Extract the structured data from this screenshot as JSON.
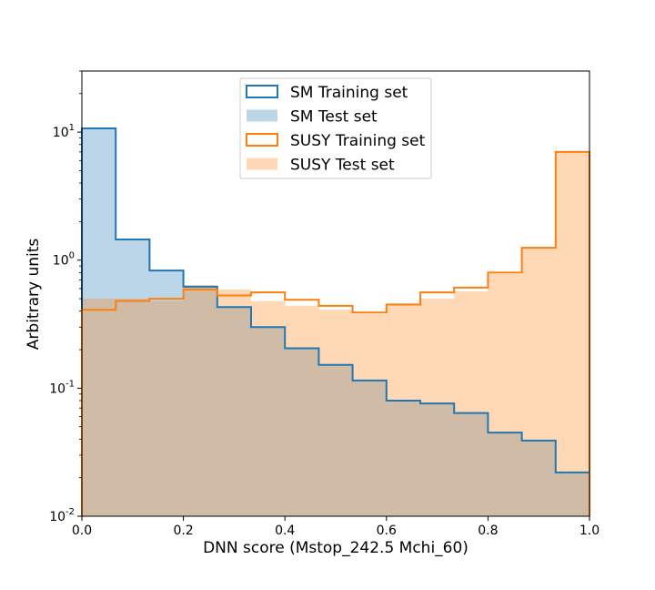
{
  "chart_data": {
    "type": "histogram",
    "xlabel": "DNN score (Mstop_242.5 Mchi_60)",
    "ylabel": "Arbitrary units",
    "xlim": [
      0.0,
      1.0
    ],
    "ylim": [
      0.01,
      30
    ],
    "yscale": "log",
    "x_ticks": [
      "0.0",
      "0.2",
      "0.4",
      "0.6",
      "0.8",
      "1.0"
    ],
    "y_ticks": [
      {
        "base": "10",
        "exp": "-2"
      },
      {
        "base": "10",
        "exp": "-1"
      },
      {
        "base": "10",
        "exp": "0"
      },
      {
        "base": "10",
        "exp": "1"
      }
    ],
    "legend_position": "top-center",
    "bin_edges": [
      0.0,
      0.0667,
      0.1333,
      0.2,
      0.2667,
      0.3333,
      0.4,
      0.4667,
      0.5333,
      0.6,
      0.6667,
      0.7333,
      0.8,
      0.8667,
      0.9333,
      1.0
    ],
    "series": [
      {
        "name": "SM Training set",
        "style": "step",
        "color": "#1f77b4",
        "values": [
          10.7,
          1.45,
          0.83,
          0.62,
          0.43,
          0.3,
          0.205,
          0.152,
          0.115,
          0.08,
          0.076,
          0.064,
          0.045,
          0.039,
          0.022
        ]
      },
      {
        "name": "SM Test set",
        "style": "filled",
        "color": "#1f77b4",
        "alpha": 0.3,
        "values": [
          10.7,
          1.45,
          0.83,
          0.62,
          0.43,
          0.3,
          0.205,
          0.152,
          0.115,
          0.08,
          0.076,
          0.064,
          0.045,
          0.039,
          0.022
        ]
      },
      {
        "name": "SUSY Training set",
        "style": "step",
        "color": "#ff7f0e",
        "values": [
          0.41,
          0.48,
          0.5,
          0.59,
          0.53,
          0.56,
          0.49,
          0.44,
          0.39,
          0.45,
          0.56,
          0.61,
          0.8,
          1.25,
          7.0
        ]
      },
      {
        "name": "SUSY Test set",
        "style": "filled",
        "color": "#ff7f0e",
        "alpha": 0.3,
        "values": [
          0.5,
          0.5,
          0.48,
          0.64,
          0.59,
          0.48,
          0.44,
          0.41,
          0.38,
          0.46,
          0.5,
          0.57,
          0.78,
          1.23,
          7.0
        ]
      }
    ]
  }
}
